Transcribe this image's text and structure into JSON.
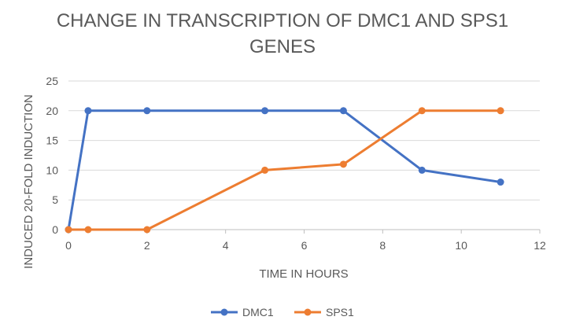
{
  "chart_data": {
    "type": "line",
    "title_line1": "CHANGE IN TRANSCRIPTION OF DMC1 AND SPS1",
    "title_line2": "GENES",
    "xlabel": "TIME IN HOURS",
    "ylabel": "INDUCED 20-FOLD INDUCTION",
    "xlim": [
      0,
      12
    ],
    "ylim": [
      0,
      25
    ],
    "x_ticks": [
      0,
      2,
      4,
      6,
      8,
      10,
      12
    ],
    "y_ticks": [
      0,
      5,
      10,
      15,
      20,
      25
    ],
    "grid": "horizontal",
    "legend_position": "bottom",
    "series": [
      {
        "name": "DMC1",
        "color": "#4472C4",
        "x": [
          0,
          0.5,
          2,
          5,
          7,
          9,
          11
        ],
        "y": [
          0,
          20,
          20,
          20,
          20,
          10,
          8
        ]
      },
      {
        "name": "SPS1",
        "color": "#ED7D31",
        "x": [
          0,
          0.5,
          2,
          5,
          7,
          9,
          11
        ],
        "y": [
          0,
          0,
          0,
          10,
          11,
          20,
          20
        ]
      }
    ]
  }
}
